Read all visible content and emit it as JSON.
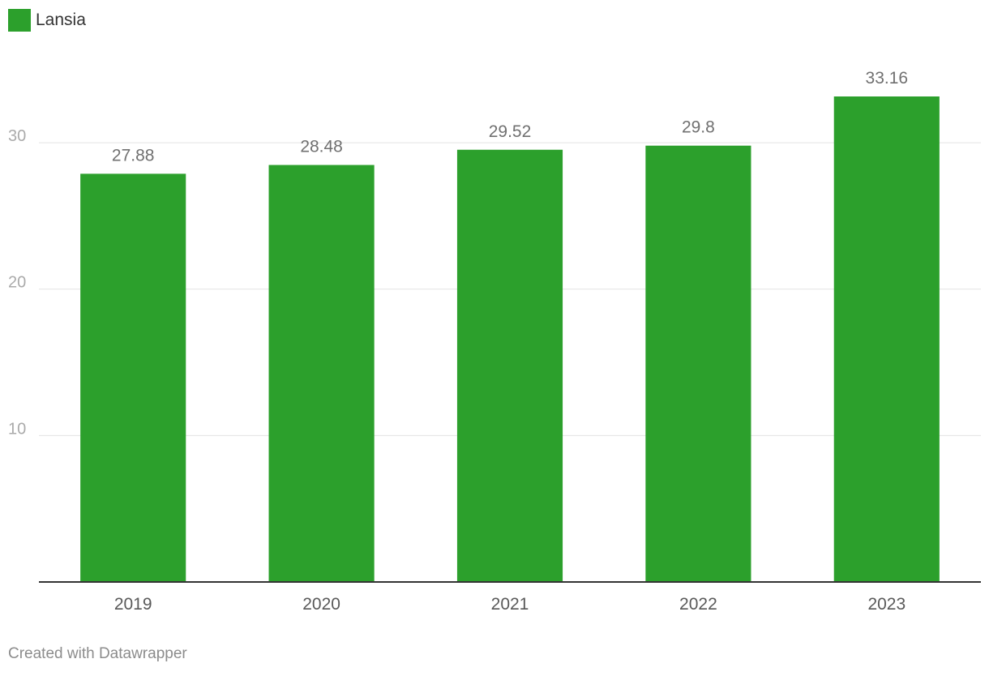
{
  "legend": {
    "label": "Lansia",
    "color": "#2ca02c"
  },
  "chart_data": {
    "type": "bar",
    "categories": [
      "2019",
      "2020",
      "2021",
      "2022",
      "2023"
    ],
    "series": [
      {
        "name": "Lansia",
        "values": [
          27.88,
          28.48,
          29.52,
          29.8,
          33.16
        ]
      }
    ],
    "data_labels": [
      "27.88",
      "28.48",
      "29.52",
      "29.8",
      "33.16"
    ],
    "yticks": [
      10,
      20,
      30
    ],
    "ylim": [
      0,
      33.16
    ],
    "grid": true,
    "legend_position": "top-left",
    "colors": {
      "bar": "#2ca02c",
      "grid": "#e3e3e3",
      "axis": "#333333",
      "tick_label": "#aaaaaa",
      "category_label": "#595959",
      "data_label": "#707070"
    }
  },
  "footer": {
    "credit": "Created with Datawrapper"
  }
}
